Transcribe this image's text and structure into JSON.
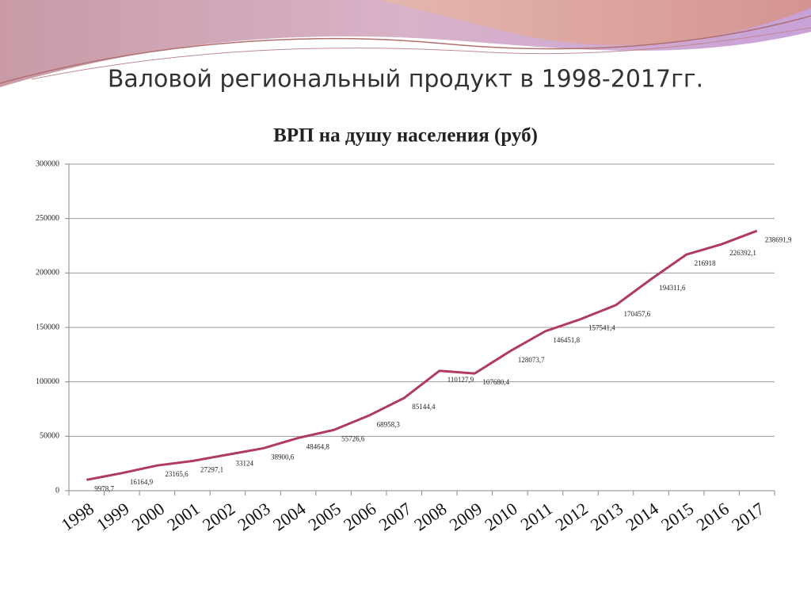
{
  "slide_title": "Валовой региональный продукт в 1998-2017гг.",
  "chart_data": {
    "type": "line",
    "title": "ВРП на душу населения (руб)",
    "categories": [
      "1998",
      "1999",
      "2000",
      "2001",
      "2002",
      "2003",
      "2004",
      "2005",
      "2006",
      "2007",
      "2008",
      "2009",
      "2010",
      "2011",
      "2012",
      "2013",
      "2014",
      "2015",
      "2016",
      "2017"
    ],
    "values": [
      9978.7,
      16164.9,
      23165.6,
      27297.1,
      33124,
      38900.6,
      48464.8,
      55726.6,
      68958.3,
      85144.4,
      110127.9,
      107680.4,
      128073.7,
      146451.8,
      157541.4,
      170457.6,
      194311.6,
      216918,
      226392.1,
      238691.9
    ],
    "value_labels": [
      "9978,7",
      "16164,9",
      "23165,6",
      "27297,1",
      "33124",
      "38900,6",
      "48464,8",
      "55726,6",
      "68958,3",
      "85144,4",
      "110127,9",
      "107680,4",
      "128073,7",
      "146451,8",
      "157541,4",
      "170457,6",
      "194311,6",
      "216918",
      "226392,1",
      "238691,9"
    ],
    "color": "#b03a60",
    "ylim": [
      0,
      300000
    ],
    "yticks": [
      0,
      50000,
      100000,
      150000,
      200000,
      250000,
      300000
    ],
    "grid": true
  }
}
